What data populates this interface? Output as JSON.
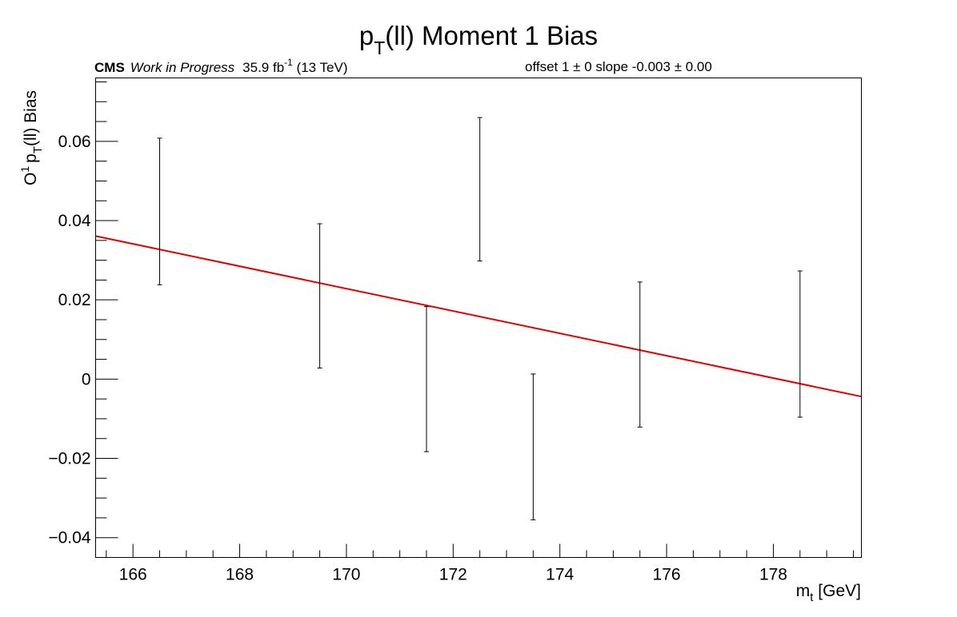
{
  "chart_data": {
    "type": "scatter",
    "title": {
      "main": "p",
      "sub": "T",
      "rest": "(ll) Moment 1 Bias"
    },
    "cms_label": "CMS",
    "status_label": "Work in Progress",
    "lumi_label": {
      "pre": "35.9 fb",
      "sup": "-1",
      "post": " (13 TeV)"
    },
    "fit_label": "offset 1 ± 0   slope -0.003 ± 0.00",
    "xlabel": {
      "main": "m",
      "sub": "t",
      "rest": " [GeV]"
    },
    "ylabel": {
      "a": "O",
      "a_sup": "1",
      "b": "p",
      "b_sub": "T",
      "rest": "(ll) Bias"
    },
    "xlim": [
      165.3,
      179.65
    ],
    "ylim": [
      -0.045,
      0.076
    ],
    "x_ticks": [
      166,
      168,
      170,
      172,
      174,
      176,
      178
    ],
    "x_tick_labels": [
      "166",
      "168",
      "170",
      "172",
      "174",
      "176",
      "178"
    ],
    "y_ticks": [
      -0.04,
      -0.02,
      0,
      0.02,
      0.04,
      0.06
    ],
    "y_tick_labels": [
      "−0.04",
      "−0.02",
      "0",
      "0.02",
      "0.04",
      "0.06"
    ],
    "grid": false,
    "series": [
      {
        "x": [
          166.5,
          169.5,
          171.5,
          172.5,
          173.5,
          175.5,
          178.5
        ],
        "y_low": [
          0.0238,
          0.0028,
          -0.0183,
          0.0298,
          -0.0355,
          -0.0121,
          -0.0096
        ],
        "y_high": [
          0.0608,
          0.0392,
          0.0183,
          0.066,
          0.0013,
          0.0245,
          0.0273
        ],
        "color": "#000000"
      }
    ],
    "fit_line": {
      "x": [
        165.3,
        179.65
      ],
      "y": [
        0.0361,
        -0.0044
      ],
      "color": "#e00000"
    }
  }
}
